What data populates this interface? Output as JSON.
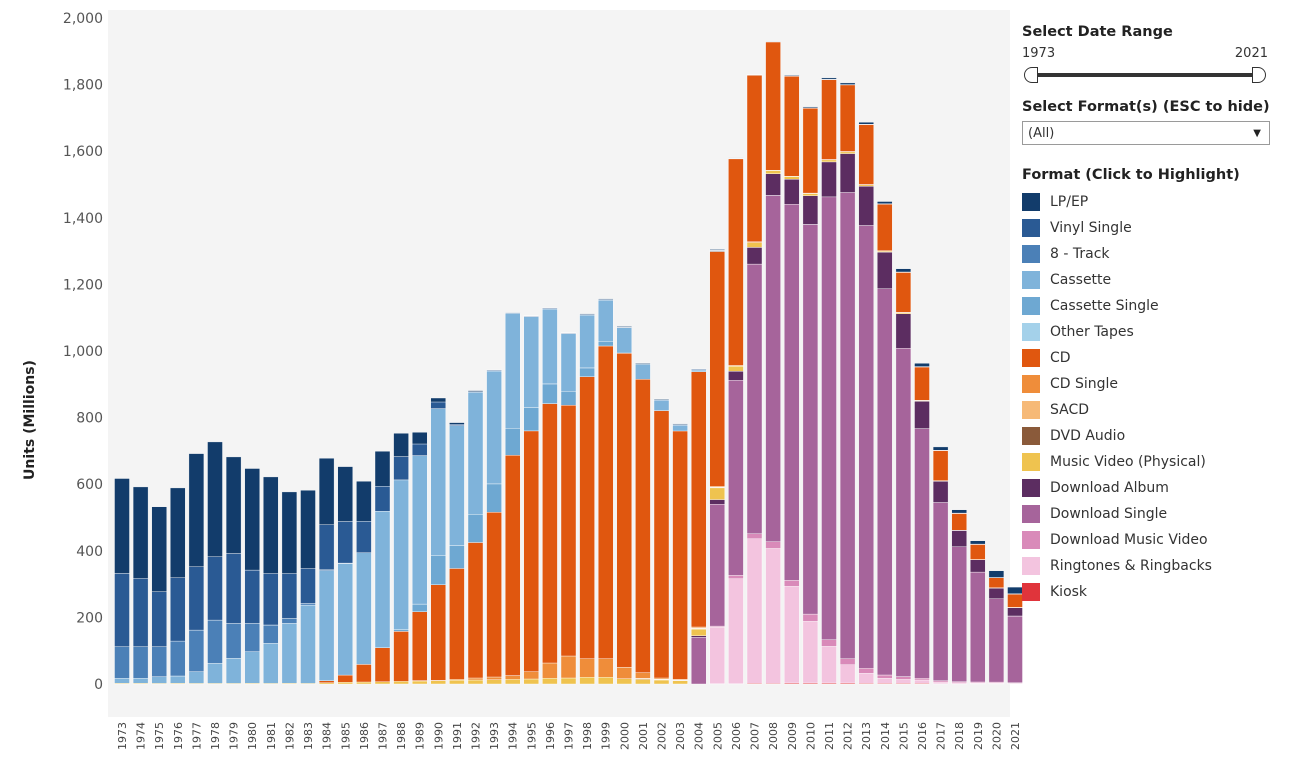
{
  "controls": {
    "date_range_title": "Select Date Range",
    "range_start": "1973",
    "range_end": "2021",
    "format_title": "Select Format(s) (ESC to hide)",
    "format_selected": "(All)",
    "legend_title": "Format (Click to Highlight)"
  },
  "chart_data": {
    "type": "bar",
    "stacked": true,
    "ylabel": "Units (Millions)",
    "ylim": [
      0,
      2000
    ],
    "yticks": [
      "0",
      "200",
      "400",
      "600",
      "800",
      "1,000",
      "1,200",
      "1,400",
      "1,600",
      "1,800",
      "2,000"
    ],
    "grid": false,
    "background": "#f4f4f4",
    "legend_position": "right",
    "categories": [
      "1973",
      "1974",
      "1975",
      "1976",
      "1977",
      "1978",
      "1979",
      "1980",
      "1981",
      "1982",
      "1983",
      "1984",
      "1985",
      "1986",
      "1987",
      "1988",
      "1989",
      "1990",
      "1991",
      "1992",
      "1993",
      "1994",
      "1995",
      "1996",
      "1997",
      "1998",
      "1999",
      "2000",
      "2001",
      "2002",
      "2003",
      "2004",
      "2005",
      "2006",
      "2007",
      "2008",
      "2009",
      "2010",
      "2011",
      "2012",
      "2013",
      "2014",
      "2015",
      "2016",
      "2017",
      "2018",
      "2019",
      "2020",
      "2021"
    ],
    "series": [
      {
        "name": "Kiosk",
        "color": "#e0343b",
        "values": [
          0,
          0,
          0,
          0,
          0,
          0,
          0,
          0,
          0,
          0,
          0,
          0,
          0,
          0,
          0,
          0,
          0,
          0,
          0,
          0,
          0,
          0,
          0,
          0,
          0,
          0,
          0,
          0,
          0,
          0,
          0,
          0,
          1,
          1,
          2,
          2,
          3,
          3,
          3,
          3,
          2,
          2,
          2,
          2,
          1,
          1,
          1,
          1,
          1
        ]
      },
      {
        "name": "Ringtones & Ringbacks",
        "color": "#f3c4df",
        "values": [
          0,
          0,
          0,
          0,
          0,
          0,
          0,
          0,
          0,
          0,
          0,
          0,
          0,
          0,
          0,
          0,
          0,
          0,
          0,
          0,
          0,
          0,
          0,
          0,
          0,
          0,
          0,
          0,
          0,
          0,
          0,
          0,
          170,
          315,
          434,
          405,
          290,
          185,
          110,
          55,
          30,
          15,
          12,
          10,
          5,
          3,
          2,
          2,
          1
        ]
      },
      {
        "name": "Download Music Video",
        "color": "#d98ab9",
        "values": [
          0,
          0,
          0,
          0,
          0,
          0,
          0,
          0,
          0,
          0,
          0,
          0,
          0,
          0,
          0,
          0,
          0,
          0,
          0,
          0,
          0,
          0,
          0,
          0,
          0,
          0,
          0,
          0,
          0,
          0,
          0,
          0,
          3,
          10,
          15,
          20,
          18,
          22,
          20,
          18,
          15,
          10,
          8,
          5,
          4,
          3,
          3,
          3,
          2
        ]
      },
      {
        "name": "Download Single",
        "color": "#a6649b",
        "values": [
          0,
          0,
          0,
          0,
          0,
          0,
          0,
          0,
          0,
          0,
          0,
          0,
          0,
          0,
          0,
          0,
          0,
          0,
          0,
          0,
          0,
          0,
          0,
          0,
          0,
          0,
          0,
          0,
          0,
          0,
          0,
          140,
          366,
          586,
          810,
          1040,
          1130,
          1170,
          1330,
          1400,
          1330,
          1160,
          986,
          750,
          535,
          405,
          330,
          250,
          200
        ]
      },
      {
        "name": "Download Album",
        "color": "#5c2d61",
        "values": [
          0,
          0,
          0,
          0,
          0,
          0,
          0,
          0,
          0,
          0,
          0,
          0,
          0,
          0,
          0,
          0,
          0,
          0,
          0,
          0,
          0,
          0,
          0,
          0,
          0,
          0,
          0,
          0,
          0,
          0,
          0,
          5,
          14,
          27,
          50,
          65,
          75,
          86,
          105,
          117,
          118,
          110,
          104,
          82,
          64,
          49,
          37,
          32,
          25
        ]
      },
      {
        "name": "Music Video (Physical)",
        "color": "#efc34f",
        "values": [
          2,
          2,
          2,
          2,
          2,
          2,
          2,
          2,
          2,
          2,
          2,
          4,
          5,
          6,
          7,
          8,
          9,
          10,
          11,
          12,
          13,
          14,
          15,
          17,
          18,
          20,
          20,
          16,
          14,
          12,
          10,
          20,
          35,
          15,
          15,
          10,
          8,
          7,
          6,
          5,
          4,
          3,
          3,
          2,
          2,
          1,
          1,
          1,
          1
        ]
      },
      {
        "name": "DVD Audio",
        "color": "#8a5a3a",
        "values": [
          0,
          0,
          0,
          0,
          0,
          0,
          0,
          0,
          0,
          0,
          0,
          0,
          0,
          0,
          0,
          0,
          0,
          0,
          0,
          0,
          0,
          0,
          0,
          0,
          0,
          0,
          0,
          0,
          2,
          1,
          1,
          1,
          1,
          0,
          0,
          0,
          0,
          0,
          0,
          0,
          0,
          0,
          0,
          0,
          0,
          0,
          0,
          0,
          0
        ]
      },
      {
        "name": "SACD",
        "color": "#f6b977",
        "values": [
          0,
          0,
          0,
          0,
          0,
          0,
          0,
          0,
          0,
          0,
          0,
          0,
          0,
          0,
          0,
          0,
          0,
          0,
          0,
          0,
          0,
          0,
          0,
          0,
          0,
          0,
          0,
          0,
          1,
          1,
          1,
          2,
          1,
          1,
          0,
          0,
          0,
          0,
          0,
          0,
          0,
          0,
          0,
          0,
          0,
          0,
          0,
          0,
          0
        ]
      },
      {
        "name": "CD Single",
        "color": "#ef8d3a",
        "values": [
          0,
          0,
          0,
          0,
          0,
          0,
          0,
          0,
          0,
          0,
          0,
          0,
          0,
          0,
          0,
          0,
          1,
          1,
          3,
          6,
          8,
          11,
          22,
          46,
          66,
          56,
          56,
          34,
          17,
          4,
          2,
          3,
          3,
          2,
          2,
          1,
          1,
          1,
          1,
          1,
          1,
          1,
          1,
          1,
          0,
          0,
          0,
          0,
          0
        ]
      },
      {
        "name": "CD",
        "color": "#e0570f",
        "values": [
          0,
          0,
          0,
          0,
          0,
          0,
          0,
          0,
          0,
          0,
          0,
          6,
          22,
          53,
          102,
          150,
          207,
          287,
          333,
          407,
          495,
          662,
          723,
          779,
          753,
          847,
          939,
          943,
          881,
          803,
          746,
          767,
          705,
          620,
          500,
          385,
          300,
          255,
          240,
          200,
          180,
          140,
          120,
          100,
          90,
          50,
          45,
          30,
          40
        ]
      },
      {
        "name": "Other Tapes",
        "color": "#a4d1ea",
        "values": [
          0,
          0,
          0,
          0,
          0,
          0,
          0,
          0,
          0,
          0,
          0,
          0,
          0,
          0,
          0,
          0,
          0,
          0,
          0,
          0,
          0,
          0,
          0,
          0,
          0,
          0,
          0,
          0,
          0,
          0,
          0,
          0,
          0,
          0,
          0,
          0,
          0,
          0,
          0,
          0,
          0,
          0,
          0,
          0,
          0,
          0,
          0,
          0,
          0
        ]
      },
      {
        "name": "Cassette Single",
        "color": "#6ea8d2",
        "values": [
          0,
          0,
          0,
          0,
          0,
          0,
          0,
          0,
          0,
          0,
          0,
          0,
          0,
          0,
          0,
          5,
          23,
          87,
          69,
          85,
          85,
          81,
          70,
          59,
          42,
          26,
          14,
          1,
          0,
          0,
          0,
          0,
          0,
          0,
          0,
          0,
          0,
          0,
          0,
          0,
          0,
          0,
          0,
          0,
          0,
          0,
          0,
          0,
          0
        ]
      },
      {
        "name": "Cassette",
        "color": "#7fb3da",
        "values": [
          15,
          15,
          20,
          22,
          35,
          60,
          75,
          95,
          120,
          180,
          235,
          330,
          335,
          335,
          410,
          450,
          446,
          442,
          360,
          366,
          339,
          345,
          273,
          225,
          173,
          159,
          124,
          76,
          45,
          31,
          17,
          5,
          2,
          1,
          0,
          0,
          0,
          0,
          0,
          0,
          0,
          0,
          0,
          0,
          0,
          0,
          0,
          0,
          0
        ]
      },
      {
        "name": "8 - Track",
        "color": "#4b80b7",
        "values": [
          95,
          95,
          90,
          105,
          125,
          130,
          105,
          85,
          55,
          15,
          5,
          3,
          1,
          0,
          0,
          0,
          0,
          0,
          0,
          0,
          0,
          0,
          0,
          0,
          0,
          0,
          0,
          0,
          0,
          0,
          0,
          0,
          0,
          0,
          0,
          0,
          0,
          0,
          0,
          0,
          0,
          0,
          0,
          0,
          0,
          0,
          0,
          0,
          0
        ]
      },
      {
        "name": "Vinyl Single",
        "color": "#2a5a94",
        "values": [
          220,
          205,
          165,
          190,
          190,
          190,
          210,
          160,
          155,
          135,
          105,
          135,
          125,
          95,
          75,
          70,
          35,
          20,
          4,
          2,
          2,
          2,
          2,
          2,
          2,
          2,
          2,
          2,
          2,
          2,
          2,
          2,
          2,
          1,
          1,
          1,
          1,
          1,
          1,
          1,
          1,
          1,
          1,
          1,
          1,
          1,
          1,
          1,
          1
        ]
      },
      {
        "name": "LP/EP",
        "color": "#123c6b",
        "values": [
          285,
          275,
          255,
          270,
          340,
          345,
          290,
          305,
          290,
          245,
          235,
          200,
          165,
          120,
          105,
          70,
          35,
          12,
          5,
          3,
          1,
          1,
          1,
          1,
          1,
          2,
          2,
          2,
          2,
          2,
          2,
          1,
          2,
          1,
          1,
          1,
          2,
          3,
          4,
          5,
          6,
          7,
          10,
          10,
          10,
          10,
          10,
          20,
          20
        ]
      }
    ]
  }
}
